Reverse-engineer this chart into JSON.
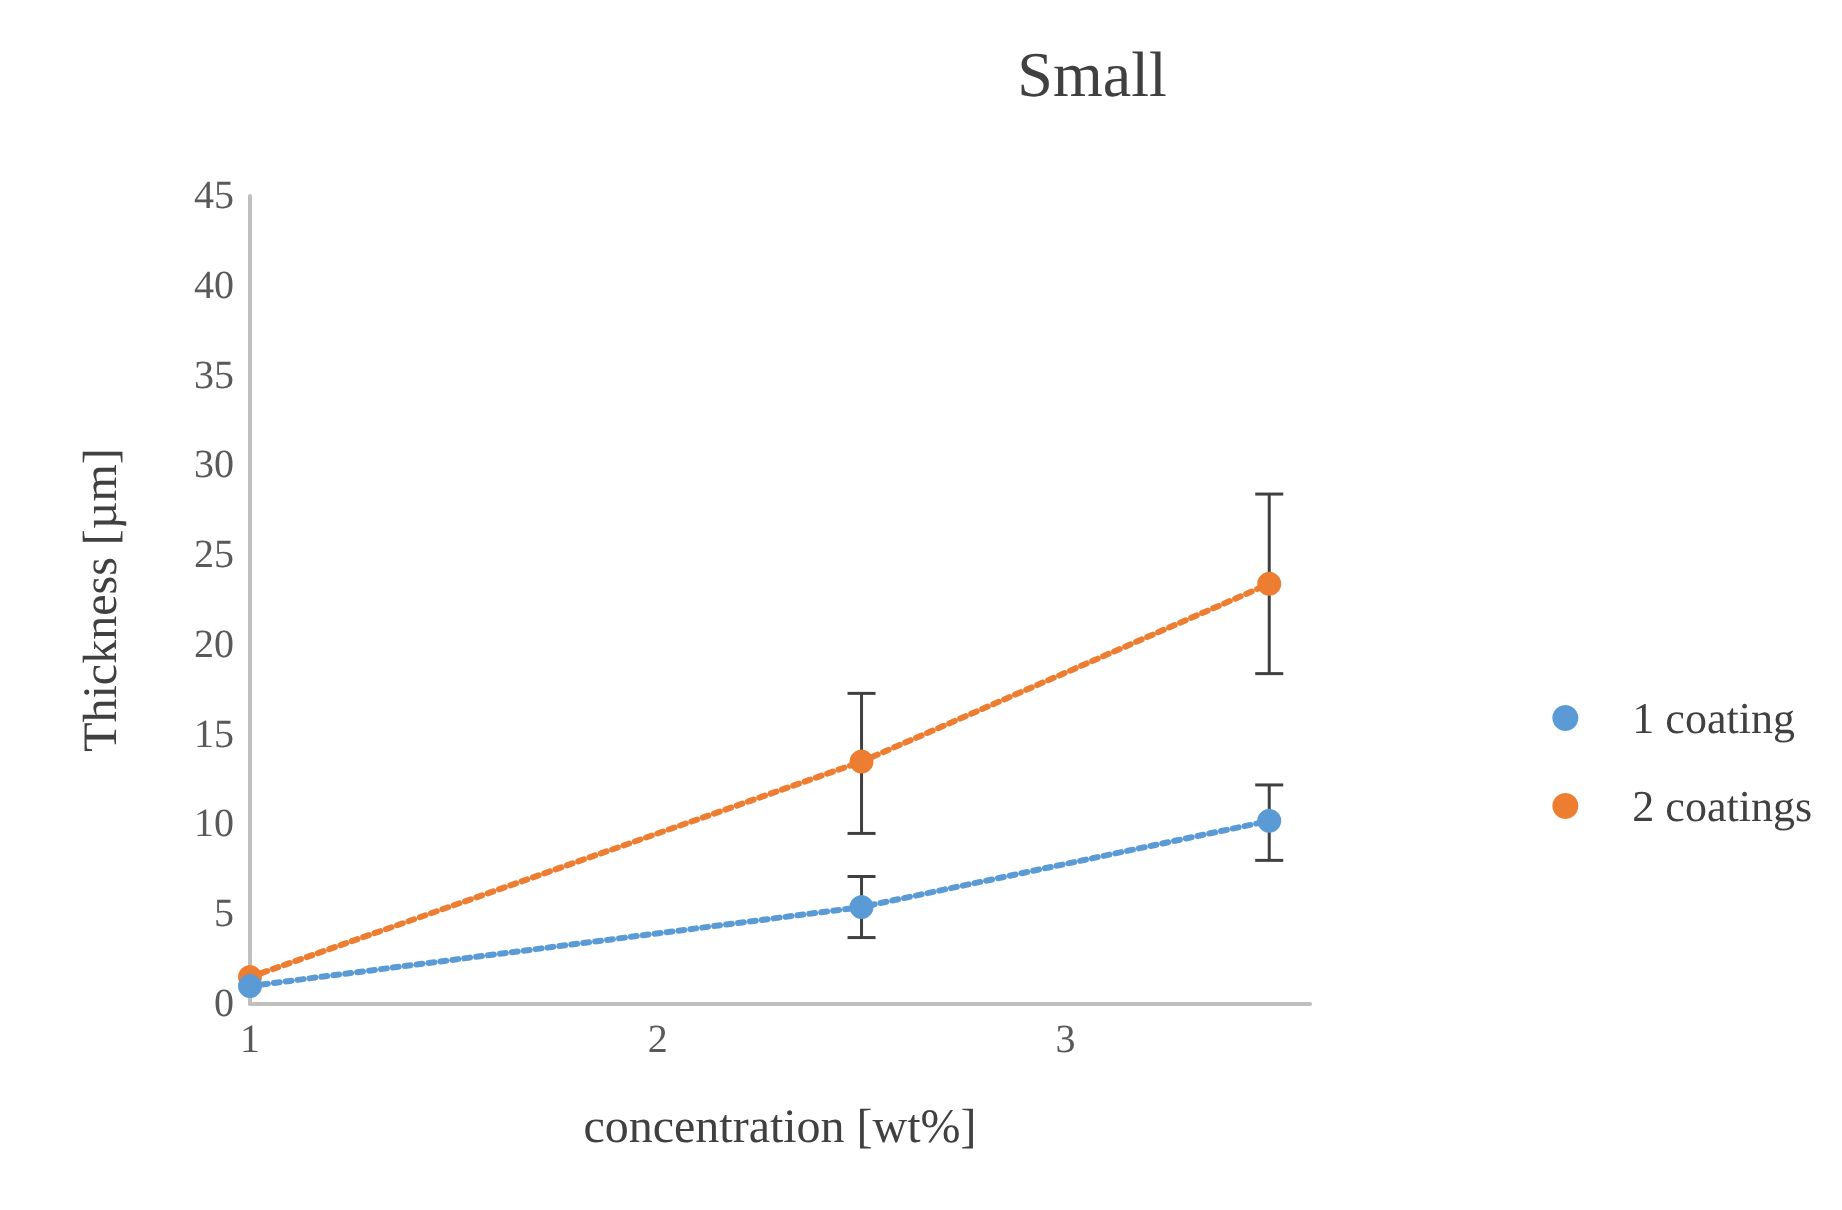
{
  "chart_data": {
    "type": "line",
    "title": "Small",
    "xlabel": "concentration [wt%]",
    "ylabel": "Thickness [µm]",
    "x": [
      1,
      2.5,
      3.5
    ],
    "series": [
      {
        "name": "1 coating",
        "color": "#5b9bd5",
        "values": [
          1.0,
          5.4,
          10.2
        ],
        "errors": [
          null,
          [
            3.7,
            7.1
          ],
          [
            8.0,
            12.2
          ]
        ]
      },
      {
        "name": "2 coatings",
        "color": "#ed7d31",
        "values": [
          1.5,
          13.5,
          23.4
        ],
        "errors": [
          null,
          [
            9.5,
            17.3
          ],
          [
            18.4,
            28.4
          ]
        ]
      }
    ],
    "xlim": [
      1,
      3.6
    ],
    "xticks": [
      1,
      2,
      3
    ],
    "ylim": [
      0,
      45
    ],
    "yticks": [
      0,
      5,
      10,
      15,
      20,
      25,
      30,
      35,
      40,
      45
    ],
    "grid": false,
    "legend": "right",
    "marker": "circle",
    "line_style": "dotted"
  }
}
